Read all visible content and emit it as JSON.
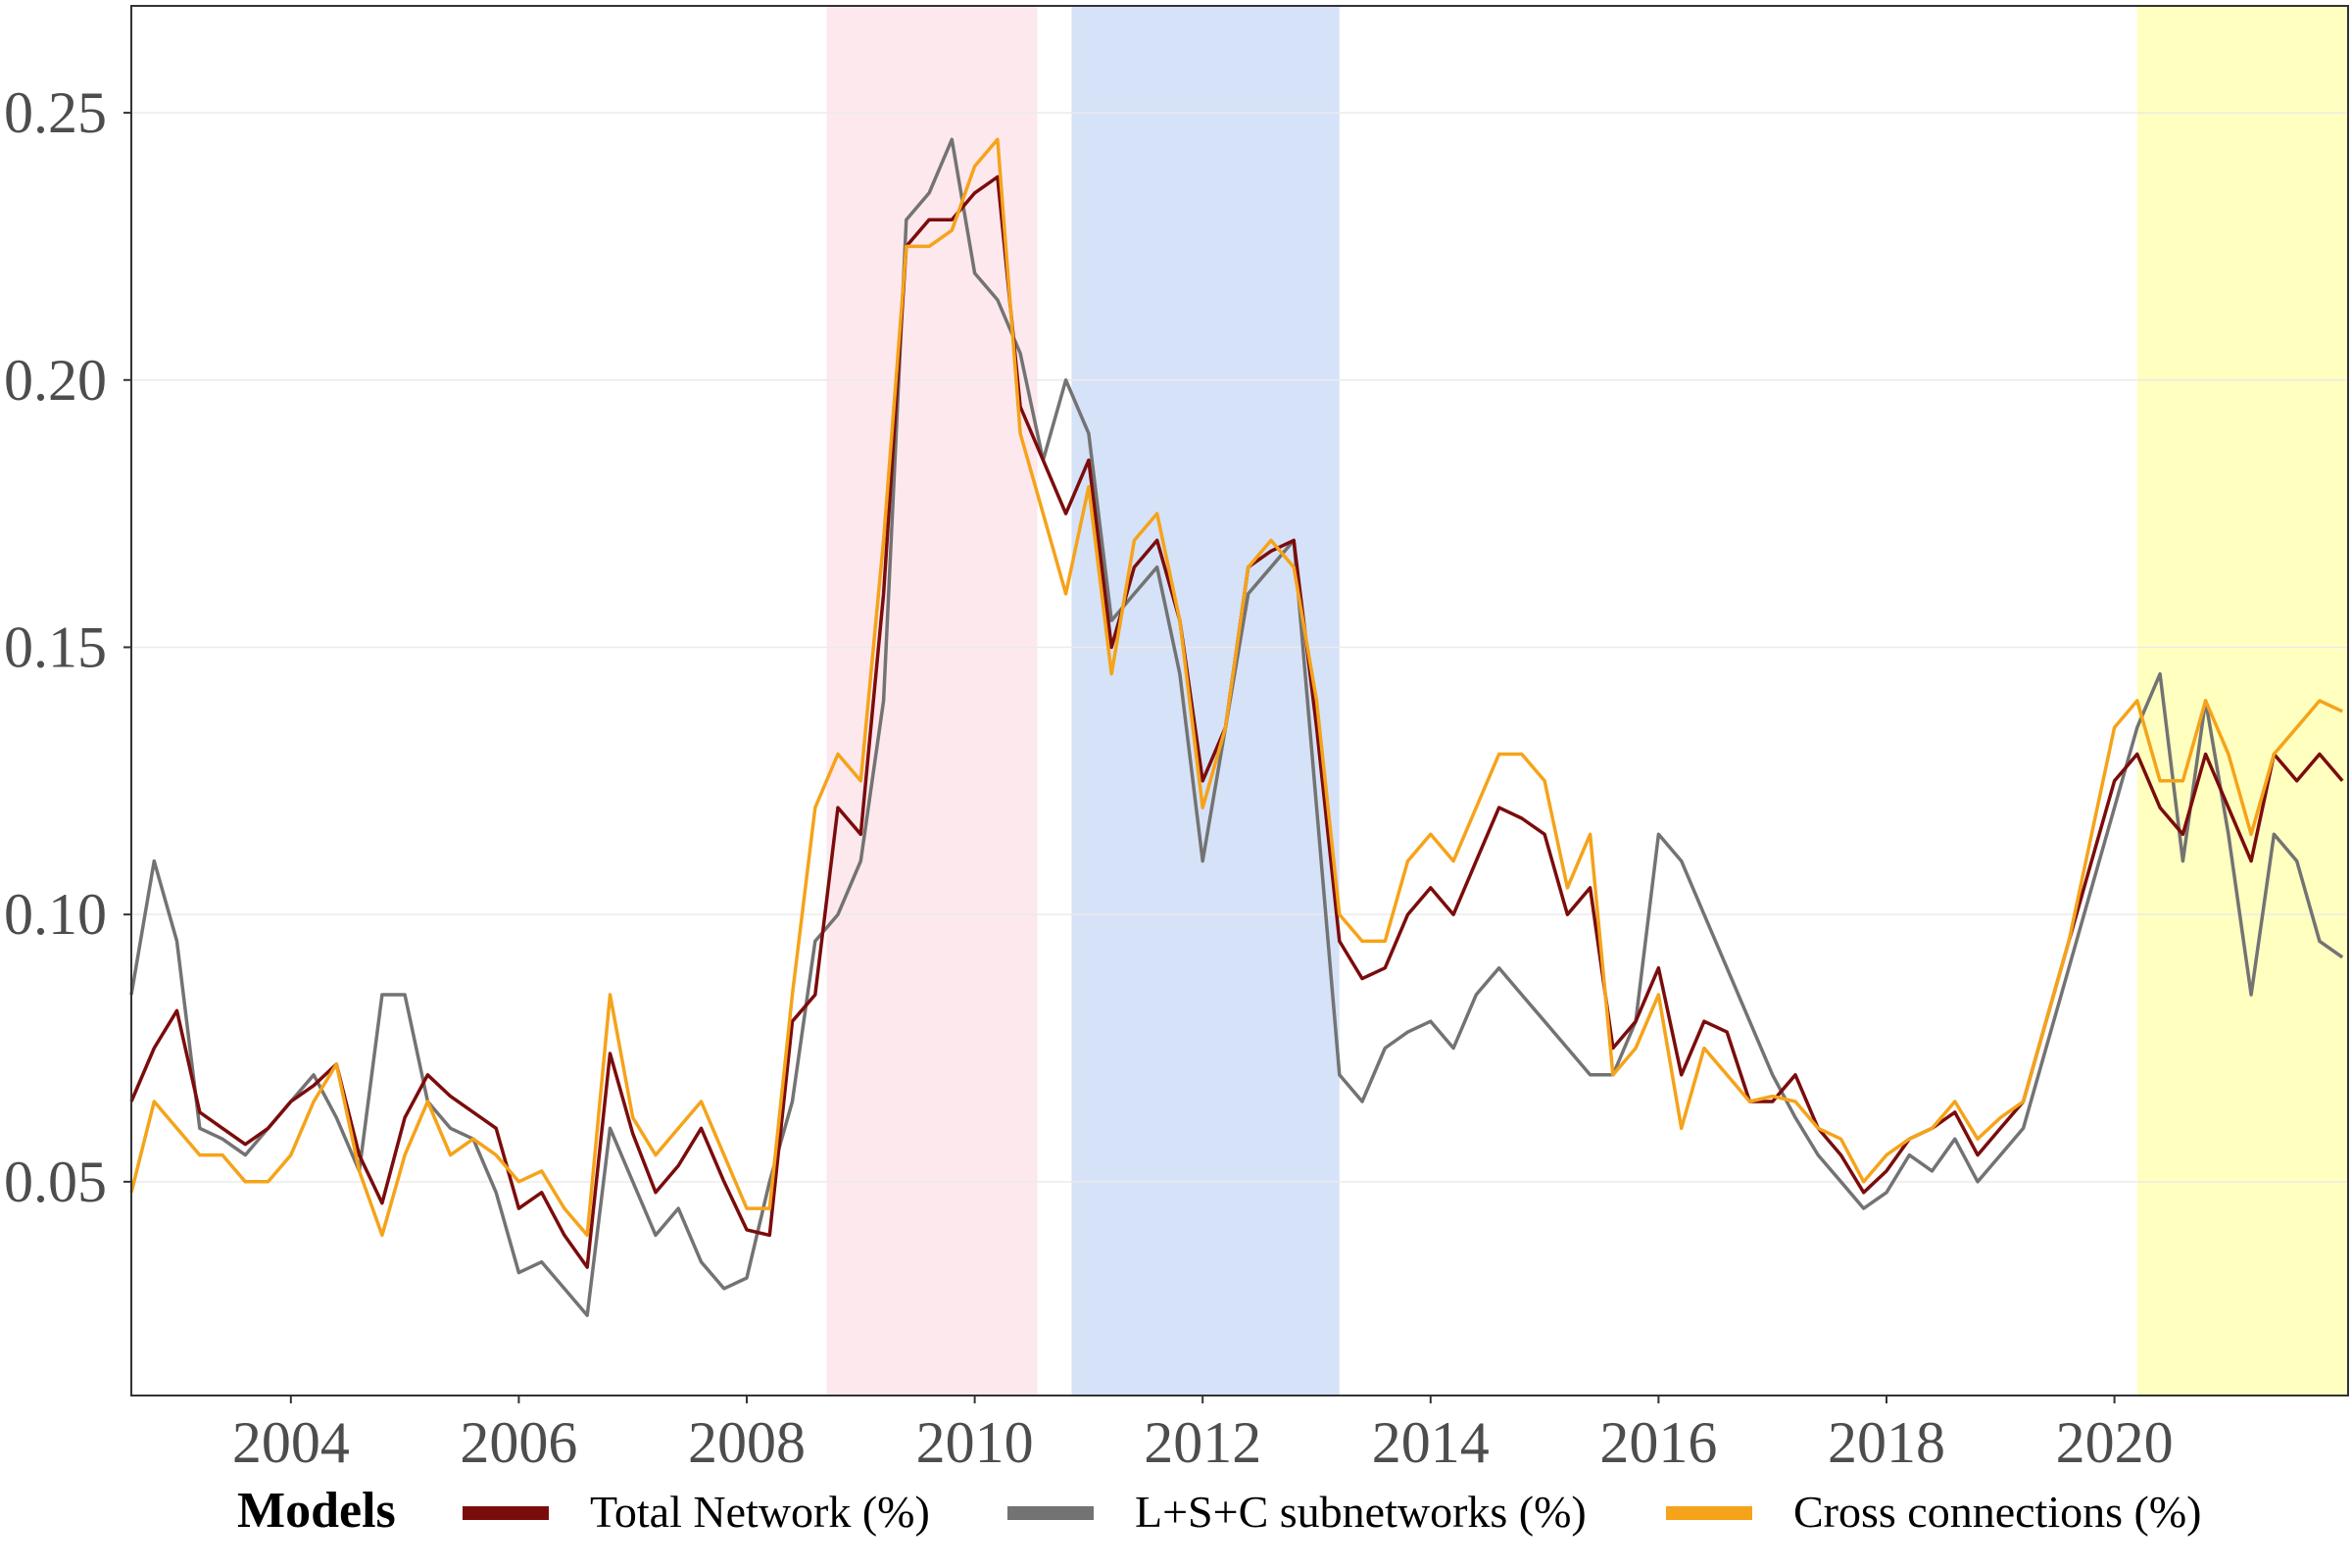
{
  "chart_data": {
    "type": "line",
    "title": "",
    "xlabel": "",
    "ylabel": "",
    "xlim": [
      2002.6,
      2022.05
    ],
    "ylim": [
      0.01,
      0.27
    ],
    "x_ticks": [
      "2004",
      "2006",
      "2008",
      "2010",
      "2012",
      "2014",
      "2016",
      "2018",
      "2020"
    ],
    "y_ticks": [
      "0.05",
      "0.10",
      "0.15",
      "0.20",
      "0.25"
    ],
    "grid": true,
    "legend": {
      "title": "Models",
      "position": "bottom"
    },
    "shaded_periods": [
      {
        "start": 2008.7,
        "end": 2010.55,
        "color": "#fde8ee"
      },
      {
        "start": 2010.85,
        "end": 2013.2,
        "color": "#d6e2f7"
      },
      {
        "start": 2020.2,
        "end": 2022.05,
        "color": "#ffffc0"
      }
    ],
    "x": [
      2002.6,
      2002.8,
      2003.0,
      2003.2,
      2003.4,
      2003.6,
      2003.8,
      2004.0,
      2004.2,
      2004.4,
      2004.6,
      2004.8,
      2005.0,
      2005.2,
      2005.4,
      2005.6,
      2005.8,
      2006.0,
      2006.2,
      2006.4,
      2006.6,
      2006.8,
      2007.0,
      2007.2,
      2007.4,
      2007.6,
      2007.8,
      2008.0,
      2008.2,
      2008.4,
      2008.6,
      2008.8,
      2009.0,
      2009.2,
      2009.4,
      2009.6,
      2009.8,
      2010.0,
      2010.2,
      2010.4,
      2010.6,
      2010.8,
      2011.0,
      2011.2,
      2011.4,
      2011.6,
      2011.8,
      2012.0,
      2012.2,
      2012.4,
      2012.6,
      2012.8,
      2013.0,
      2013.2,
      2013.4,
      2013.6,
      2013.8,
      2014.0,
      2014.2,
      2014.4,
      2014.6,
      2014.8,
      2015.0,
      2015.2,
      2015.4,
      2015.6,
      2015.8,
      2016.0,
      2016.2,
      2016.4,
      2016.6,
      2016.8,
      2017.0,
      2017.2,
      2017.4,
      2017.6,
      2017.8,
      2018.0,
      2018.2,
      2018.4,
      2018.6,
      2018.8,
      2019.0,
      2019.2,
      2019.4,
      2019.6,
      2019.8,
      2020.0,
      2020.2,
      2020.4,
      2020.6,
      2020.8,
      2021.0,
      2021.2,
      2021.4,
      2021.6,
      2021.8,
      2022.0
    ],
    "series": [
      {
        "name": "Total Network (%)",
        "color": "#7b0c0c",
        "values": [
          0.065,
          0.075,
          0.082,
          0.063,
          0.06,
          0.057,
          0.06,
          0.065,
          0.068,
          0.072,
          0.055,
          0.046,
          0.062,
          0.07,
          0.066,
          0.063,
          0.06,
          0.045,
          0.048,
          0.04,
          0.034,
          0.074,
          0.059,
          0.048,
          0.053,
          0.06,
          0.05,
          0.041,
          0.04,
          0.08,
          0.085,
          0.12,
          0.115,
          0.16,
          0.225,
          0.23,
          0.23,
          0.235,
          0.238,
          0.195,
          0.185,
          0.175,
          0.185,
          0.15,
          0.165,
          0.17,
          0.155,
          0.125,
          0.135,
          0.165,
          0.168,
          0.17,
          0.135,
          0.095,
          0.088,
          0.09,
          0.1,
          0.105,
          0.1,
          0.11,
          0.12,
          0.118,
          0.115,
          0.1,
          0.105,
          0.075,
          0.08,
          0.09,
          0.07,
          0.08,
          0.078,
          0.065,
          0.065,
          0.07,
          0.06,
          0.055,
          0.048,
          0.052,
          0.058,
          0.06,
          0.063,
          0.055,
          0.06,
          0.065,
          0.08,
          0.095,
          0.11,
          0.125,
          0.13,
          0.12,
          0.115,
          0.13,
          0.12,
          0.11,
          0.13,
          0.125,
          0.13,
          0.125
        ]
      },
      {
        "name": "L+S+C subnetworks (%)",
        "color": "#737373",
        "values": [
          0.085,
          0.11,
          0.095,
          0.06,
          0.058,
          0.055,
          0.06,
          0.065,
          0.07,
          0.062,
          0.052,
          0.085,
          0.085,
          0.065,
          0.06,
          0.058,
          0.048,
          0.033,
          0.035,
          0.03,
          0.025,
          0.06,
          0.05,
          0.04,
          0.045,
          0.035,
          0.03,
          0.032,
          0.05,
          0.065,
          0.095,
          0.1,
          0.11,
          0.14,
          0.23,
          0.235,
          0.245,
          0.22,
          0.215,
          0.205,
          0.185,
          0.2,
          0.19,
          0.155,
          0.16,
          0.165,
          0.145,
          0.11,
          0.135,
          0.16,
          0.165,
          0.17,
          0.12,
          0.07,
          0.065,
          0.075,
          0.078,
          0.08,
          0.075,
          0.085,
          0.09,
          0.085,
          0.08,
          0.075,
          0.07,
          0.07,
          0.08,
          0.115,
          0.11,
          0.1,
          0.09,
          0.08,
          0.07,
          0.062,
          0.055,
          0.05,
          0.045,
          0.048,
          0.055,
          0.052,
          0.058,
          0.05,
          0.055,
          0.06,
          0.075,
          0.09,
          0.105,
          0.12,
          0.135,
          0.145,
          0.11,
          0.14,
          0.115,
          0.085,
          0.115,
          0.11,
          0.095,
          0.092
        ]
      },
      {
        "name": "Cross connections (%)",
        "color": "#f5a31a",
        "values": [
          0.048,
          0.065,
          0.06,
          0.055,
          0.055,
          0.05,
          0.05,
          0.055,
          0.065,
          0.072,
          0.052,
          0.04,
          0.055,
          0.065,
          0.055,
          0.058,
          0.055,
          0.05,
          0.052,
          0.045,
          0.04,
          0.085,
          0.062,
          0.055,
          0.06,
          0.065,
          0.055,
          0.045,
          0.045,
          0.085,
          0.12,
          0.13,
          0.125,
          0.17,
          0.225,
          0.225,
          0.228,
          0.24,
          0.245,
          0.19,
          0.175,
          0.16,
          0.18,
          0.145,
          0.17,
          0.175,
          0.155,
          0.12,
          0.135,
          0.165,
          0.17,
          0.165,
          0.14,
          0.1,
          0.095,
          0.095,
          0.11,
          0.115,
          0.11,
          0.12,
          0.13,
          0.13,
          0.125,
          0.105,
          0.115,
          0.07,
          0.075,
          0.085,
          0.06,
          0.075,
          0.07,
          0.065,
          0.066,
          0.065,
          0.06,
          0.058,
          0.05,
          0.055,
          0.058,
          0.06,
          0.065,
          0.058,
          0.062,
          0.065,
          0.08,
          0.095,
          0.115,
          0.135,
          0.14,
          0.125,
          0.125,
          0.14,
          0.13,
          0.115,
          0.13,
          0.135,
          0.14,
          0.138
        ]
      }
    ]
  }
}
